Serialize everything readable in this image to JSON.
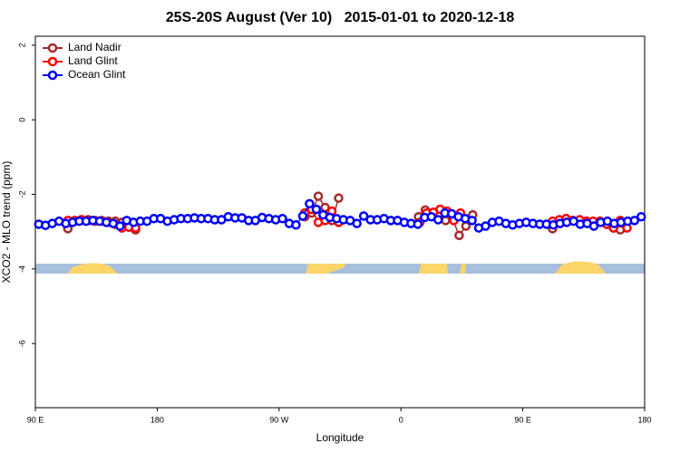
{
  "chart_data": {
    "type": "line",
    "title": "25S-20S August (Ver 10)   2015-01-01 to 2020-12-18",
    "x_label": "Longitude",
    "y_label": "XCO2 - MLO trend (ppm)",
    "xlim": [
      90,
      540
    ],
    "ylim": [
      -7.72,
      2.24
    ],
    "xticks": [
      {
        "value": 90,
        "label": "90 E"
      },
      {
        "value": 180,
        "label": "180"
      },
      {
        "value": 270,
        "label": "90 W"
      },
      {
        "value": 360,
        "label": "0"
      },
      {
        "value": 450,
        "label": "90 E"
      },
      {
        "value": 540,
        "label": "180"
      }
    ],
    "yticks": [
      -6,
      -4,
      -2,
      0,
      2
    ],
    "legend": "top-left",
    "series": [
      {
        "name": "Land Nadir",
        "color": "#a52a2a",
        "x": [
          114,
          119,
          124,
          129,
          134,
          139,
          144,
          149,
          154,
          159,
          164,
          null,
          289,
          294,
          299,
          304,
          309,
          314,
          null,
          373,
          378,
          383,
          388,
          393,
          398,
          403,
          408,
          413,
          null,
          472,
          477,
          482,
          487,
          492,
          497,
          502,
          507,
          512,
          517,
          522
        ],
        "values": [
          -2.92,
          -2.7,
          -2.68,
          -2.68,
          -2.7,
          -2.7,
          -2.72,
          -2.72,
          -2.75,
          -2.75,
          -2.95,
          null,
          -2.6,
          -2.5,
          -2.05,
          -2.35,
          -2.7,
          -2.1,
          null,
          -2.6,
          -2.42,
          -2.5,
          -2.55,
          -2.7,
          -2.65,
          -3.1,
          -2.85,
          -2.55,
          null,
          -2.92,
          -2.7,
          -2.65,
          -2.7,
          -2.72,
          -2.72,
          -2.75,
          -2.72,
          -2.8,
          -2.9,
          -2.95
        ]
      },
      {
        "name": "Land Glint",
        "color": "#ff0000",
        "x": [
          114,
          119,
          124,
          129,
          134,
          139,
          144,
          149,
          154,
          159,
          164,
          null,
          289,
          294,
          299,
          304,
          309,
          314,
          null,
          374,
          379,
          384,
          389,
          394,
          399,
          404,
          null,
          472,
          477,
          482,
          487,
          492,
          497,
          502,
          507,
          512,
          517,
          522,
          527
        ],
        "values": [
          -2.7,
          -2.72,
          -2.68,
          -2.7,
          -2.72,
          -2.72,
          -2.75,
          -2.8,
          -2.9,
          -2.88,
          -2.9,
          null,
          -2.5,
          -2.4,
          -2.75,
          -2.7,
          -2.45,
          -2.75,
          null,
          -2.75,
          -2.5,
          -2.48,
          -2.4,
          -2.45,
          -2.7,
          -2.5,
          null,
          -2.72,
          -2.68,
          -2.65,
          -2.7,
          -2.68,
          -2.72,
          -2.72,
          -2.72,
          -2.8,
          -2.9,
          -2.7,
          -2.9
        ]
      },
      {
        "name": "Ocean Glint",
        "color": "#0000ff",
        "x": [
          92.5,
          97.5,
          102.5,
          107.5,
          112.5,
          117.5,
          122.5,
          127.5,
          132.5,
          137.5,
          142.5,
          147.5,
          152.5,
          157.5,
          162.5,
          167.5,
          172.5,
          177.5,
          182.5,
          187.5,
          192.5,
          197.5,
          202.5,
          207.5,
          212.5,
          217.5,
          222.5,
          227.5,
          232.5,
          237.5,
          242.5,
          247.5,
          252.5,
          257.5,
          262.5,
          267.5,
          272.5,
          277.5,
          282.5,
          287.5,
          292.5,
          297.5,
          302.5,
          307.5,
          312.5,
          317.5,
          322.5,
          327.5,
          332.5,
          337.5,
          342.5,
          347.5,
          352.5,
          357.5,
          362.5,
          367.5,
          372.5,
          377.5,
          382.5,
          387.5,
          392.5,
          397.5,
          402.5,
          407.5,
          412.5,
          417.5,
          422.5,
          427.5,
          432.5,
          437.5,
          442.5,
          447.5,
          452.5,
          457.5,
          462.5,
          467.5,
          472.5,
          477.5,
          482.5,
          487.5,
          492.5,
          497.5,
          502.5,
          507.5,
          512.5,
          517.5,
          522.5,
          527.5,
          532.5,
          537.5
        ],
        "values": [
          -2.8,
          -2.83,
          -2.78,
          -2.72,
          -2.78,
          -2.75,
          -2.72,
          -2.72,
          -2.7,
          -2.72,
          -2.75,
          -2.78,
          -2.85,
          -2.7,
          -2.75,
          -2.72,
          -2.72,
          -2.65,
          -2.65,
          -2.72,
          -2.68,
          -2.65,
          -2.65,
          -2.63,
          -2.65,
          -2.65,
          -2.68,
          -2.68,
          -2.6,
          -2.63,
          -2.63,
          -2.7,
          -2.7,
          -2.62,
          -2.65,
          -2.68,
          -2.65,
          -2.78,
          -2.82,
          -2.58,
          -2.25,
          -2.4,
          -2.55,
          -2.62,
          -2.65,
          -2.68,
          -2.7,
          -2.78,
          -2.58,
          -2.68,
          -2.68,
          -2.65,
          -2.7,
          -2.7,
          -2.75,
          -2.78,
          -2.8,
          -2.62,
          -2.6,
          -2.68,
          -2.5,
          -2.52,
          -2.6,
          -2.65,
          -2.7,
          -2.9,
          -2.85,
          -2.75,
          -2.72,
          -2.78,
          -2.82,
          -2.78,
          -2.75,
          -2.78,
          -2.8,
          -2.8,
          -2.82,
          -2.78,
          -2.75,
          -2.72,
          -2.8,
          -2.78,
          -2.85,
          -2.75,
          -2.72,
          -2.78,
          -2.75,
          -2.72,
          -2.7,
          -2.6
        ]
      }
    ]
  }
}
